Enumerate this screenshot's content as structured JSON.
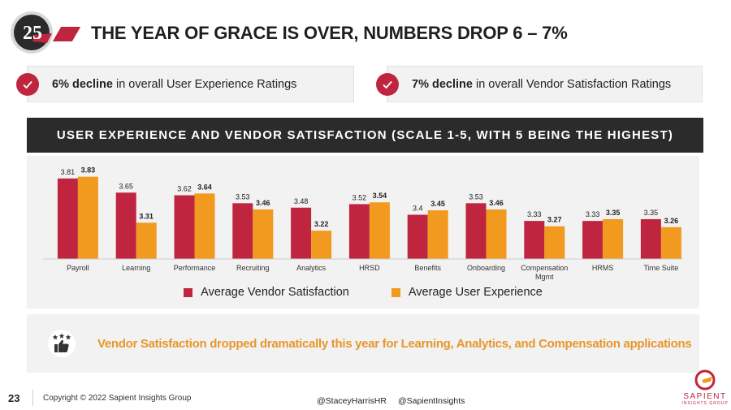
{
  "header": {
    "logo_number": "25",
    "title": "THE YEAR OF GRACE IS OVER, NUMBERS DROP 6 – 7%"
  },
  "callouts": [
    {
      "bold": "6% decline",
      "text": " in overall User Experience Ratings",
      "icon": "check-icon"
    },
    {
      "bold": "7% decline",
      "text": " in overall Vendor Satisfaction Ratings",
      "icon": "check-icon"
    }
  ],
  "banner": "USER EXPERIENCE AND VENDOR SATISFACTION (SCALE 1-5, WITH 5 BEING THE HIGHEST)",
  "chart_data": {
    "type": "bar",
    "categories": [
      "Payroll",
      "Learning",
      "Performance",
      "Recruiting",
      "Analytics",
      "HRSD",
      "Benefits",
      "Onboarding",
      "Compensation Mgmt",
      "HRMS",
      "Time Suite"
    ],
    "category_lines": [
      [
        "Payroll"
      ],
      [
        "Learning"
      ],
      [
        "Performance"
      ],
      [
        "Recruiting"
      ],
      [
        "Analytics"
      ],
      [
        "HRSD"
      ],
      [
        "Benefits"
      ],
      [
        "Onboarding"
      ],
      [
        "Compensation",
        "Mgmt"
      ],
      [
        "HRMS"
      ],
      [
        "Time Suite"
      ]
    ],
    "series": [
      {
        "name": "Average Vendor Satisfaction",
        "color": "#c0253f",
        "values": [
          3.81,
          3.65,
          3.62,
          3.53,
          3.48,
          3.52,
          3.4,
          3.53,
          3.33,
          3.33,
          3.35
        ],
        "labels": [
          "3.81",
          "3.65",
          "3.62",
          "3.53",
          "3.48",
          "3.52",
          "3.4",
          "3.53",
          "3.33",
          "3.33",
          "3.35"
        ]
      },
      {
        "name": "Average User Experience",
        "color": "#f19a1f",
        "values": [
          3.83,
          3.31,
          3.64,
          3.46,
          3.22,
          3.54,
          3.45,
          3.46,
          3.27,
          3.35,
          3.26
        ],
        "labels": [
          "3.83",
          "3.31",
          "3.64",
          "3.46",
          "3.22",
          "3.54",
          "3.45",
          "3.46",
          "3.27",
          "3.35",
          "3.26"
        ]
      }
    ],
    "ylim": [
      2.9,
      3.9
    ],
    "legend_position": "bottom",
    "grid": false
  },
  "insight": {
    "icon": "stars-thumbs-up-icon",
    "text": "Vendor Satisfaction dropped dramatically this year for Learning, Analytics, and Compensation applications"
  },
  "footer": {
    "page_number": "23",
    "copyright": "Copyright © 2022 Sapient Insights Group",
    "handles": [
      "@StaceyHarrisHR",
      "@SapientInsights"
    ]
  },
  "brand": {
    "name": "SAPIENT",
    "sub": "INSIGHTS GROUP"
  },
  "colors": {
    "accent": "#c0253f",
    "orange": "#f19a1f",
    "banner": "#2b2b2b",
    "panel": "#f2f2f2"
  }
}
